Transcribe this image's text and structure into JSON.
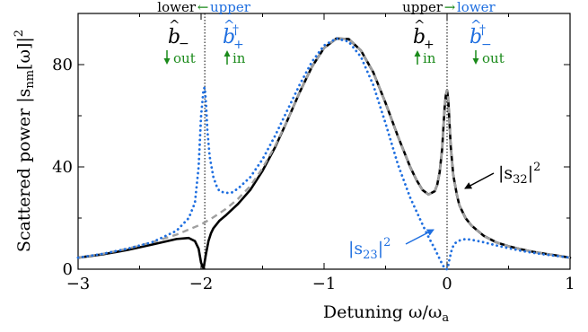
{
  "chart_data": {
    "type": "line",
    "xlabel": "Detuning ω/ω",
    "xlabel_sub": "a",
    "ylabel": "Scattered power |s",
    "ylabel_sub": "nm",
    "ylabel_tail": "[ω]|",
    "ylabel_sup": "2",
    "xlim": [
      -3,
      1
    ],
    "ylim": [
      0,
      100
    ],
    "x_ticks": [
      -3,
      -2,
      -1,
      0,
      1
    ],
    "x_tick_labels": [
      "−3",
      "−2",
      "−1",
      "0",
      "1"
    ],
    "y_ticks": [
      0,
      40,
      80
    ],
    "y_tick_labels": [
      "0",
      "40",
      "80"
    ],
    "grid": false,
    "vlines": [
      -1.97,
      0
    ],
    "series": [
      {
        "style": "solid",
        "color": "#000000",
        "x": [
          -3.0,
          -2.8,
          -2.6,
          -2.4,
          -2.2,
          -2.1,
          -2.05,
          -2.02,
          -2.0,
          -1.98,
          -1.96,
          -1.94,
          -1.92,
          -1.9,
          -1.85,
          -1.8,
          -1.7,
          -1.6,
          -1.5,
          -1.4,
          -1.3,
          -1.2,
          -1.1,
          -1.0,
          -0.9,
          -0.8,
          -0.7,
          -0.6,
          -0.5,
          -0.4,
          -0.3,
          -0.25,
          -0.2,
          -0.15,
          -0.1,
          -0.08,
          -0.06,
          -0.04,
          -0.03,
          -0.02,
          -0.01,
          0.0,
          0.01,
          0.02,
          0.03,
          0.05,
          0.08,
          0.1,
          0.15,
          0.2,
          0.3,
          0.4,
          0.5,
          0.6,
          0.7,
          0.8,
          0.9,
          1.0
        ],
        "y": [
          4.5,
          5.8,
          7.5,
          9.6,
          11.8,
          12.2,
          11.0,
          8.0,
          2.5,
          0.3,
          6.0,
          11.0,
          14.0,
          16.0,
          19.0,
          21.0,
          25.5,
          31.0,
          38.5,
          47.5,
          58.0,
          69.0,
          79.0,
          86.5,
          90.2,
          90.0,
          85.5,
          77.0,
          65.0,
          52.0,
          40.0,
          35.0,
          31.0,
          29.2,
          30.5,
          33.0,
          38.0,
          47.0,
          55.0,
          63.0,
          68.0,
          70.0,
          66.0,
          57.0,
          48.0,
          37.0,
          29.0,
          25.0,
          20.0,
          17.0,
          13.0,
          10.5,
          9.0,
          7.8,
          6.8,
          6.0,
          5.3,
          4.5
        ]
      },
      {
        "style": "dashed",
        "color": "#a0a0a0",
        "x": [
          -3.0,
          -2.8,
          -2.6,
          -2.4,
          -2.2,
          -2.0,
          -1.9,
          -1.8,
          -1.7,
          -1.6,
          -1.5,
          -1.4,
          -1.3,
          -1.2,
          -1.1,
          -1.0,
          -0.9,
          -0.8,
          -0.7,
          -0.6,
          -0.5,
          -0.4,
          -0.3,
          -0.25,
          -0.2,
          -0.15,
          -0.1,
          -0.08,
          -0.06,
          -0.04,
          -0.03,
          -0.02,
          -0.01,
          0.0,
          0.01,
          0.02,
          0.03,
          0.05,
          0.08,
          0.1,
          0.15,
          0.2,
          0.3,
          0.4,
          0.5,
          0.6,
          0.7,
          0.8,
          0.9,
          1.0
        ],
        "y": [
          4.5,
          6.0,
          8.0,
          10.5,
          13.5,
          17.5,
          20.3,
          23.5,
          27.5,
          32.5,
          39.5,
          48.0,
          58.0,
          69.0,
          79.0,
          86.5,
          90.2,
          90.0,
          85.5,
          77.0,
          65.0,
          52.0,
          40.0,
          35.0,
          31.0,
          29.2,
          30.5,
          33.0,
          38.0,
          47.0,
          55.0,
          63.0,
          68.0,
          70.0,
          66.0,
          57.0,
          48.0,
          37.0,
          29.0,
          25.0,
          20.0,
          17.0,
          13.0,
          10.5,
          9.0,
          7.8,
          6.8,
          6.0,
          5.3,
          4.5
        ]
      },
      {
        "style": "dotted",
        "color": "#1f6fe0",
        "x": [
          -3.0,
          -2.8,
          -2.6,
          -2.4,
          -2.2,
          -2.1,
          -2.05,
          -2.02,
          -2.0,
          -1.98,
          -1.97,
          -1.96,
          -1.95,
          -1.93,
          -1.9,
          -1.87,
          -1.85,
          -1.8,
          -1.75,
          -1.7,
          -1.6,
          -1.5,
          -1.4,
          -1.3,
          -1.2,
          -1.1,
          -1.0,
          -0.9,
          -0.8,
          -0.7,
          -0.6,
          -0.5,
          -0.4,
          -0.3,
          -0.2,
          -0.15,
          -0.1,
          -0.07,
          -0.05,
          -0.03,
          -0.02,
          -0.01,
          0.0,
          0.01,
          0.02,
          0.04,
          0.06,
          0.1,
          0.15,
          0.2,
          0.3,
          0.4,
          0.5,
          0.6,
          0.7,
          0.8,
          0.9,
          1.0
        ],
        "y": [
          4.5,
          6.0,
          8.0,
          10.5,
          15.0,
          20.0,
          26.0,
          40.0,
          60.0,
          70.5,
          71.0,
          65.0,
          55.0,
          44.0,
          36.0,
          32.0,
          30.5,
          29.8,
          30.0,
          31.5,
          36.0,
          43.0,
          52.0,
          62.0,
          72.0,
          81.0,
          87.5,
          90.2,
          89.0,
          83.0,
          72.0,
          57.0,
          41.0,
          28.0,
          17.5,
          12.5,
          8.0,
          5.0,
          3.0,
          1.2,
          0.4,
          0.0,
          0.0,
          1.5,
          4.0,
          8.0,
          10.0,
          11.2,
          11.8,
          11.5,
          10.5,
          9.3,
          8.2,
          7.2,
          6.4,
          5.7,
          5.1,
          4.5
        ]
      }
    ],
    "annotations": {
      "left_dir_lower": "lower",
      "left_dir_arrow": "←",
      "left_dir_upper": "upper",
      "right_dir_upper": "upper",
      "right_dir_arrow": "→",
      "right_dir_lower": "lower",
      "b_minus_sub": "−",
      "b_plus_dag_sub": "+",
      "b_plus_sub": "+",
      "b_minus_dag_sub": "−",
      "dagger": "†",
      "out_label": "out",
      "in_label": "in",
      "s32_main": "|s",
      "s32_sub": "32",
      "s32_tail": "|",
      "s32_sup": "2",
      "s23_main": "|s",
      "s23_sub": "23",
      "s23_tail": "|",
      "s23_sup": "2"
    },
    "colors": {
      "black": "#000000",
      "blue": "#1f6fe0",
      "green": "#1a8a1a",
      "gray": "#a0a0a0"
    }
  }
}
